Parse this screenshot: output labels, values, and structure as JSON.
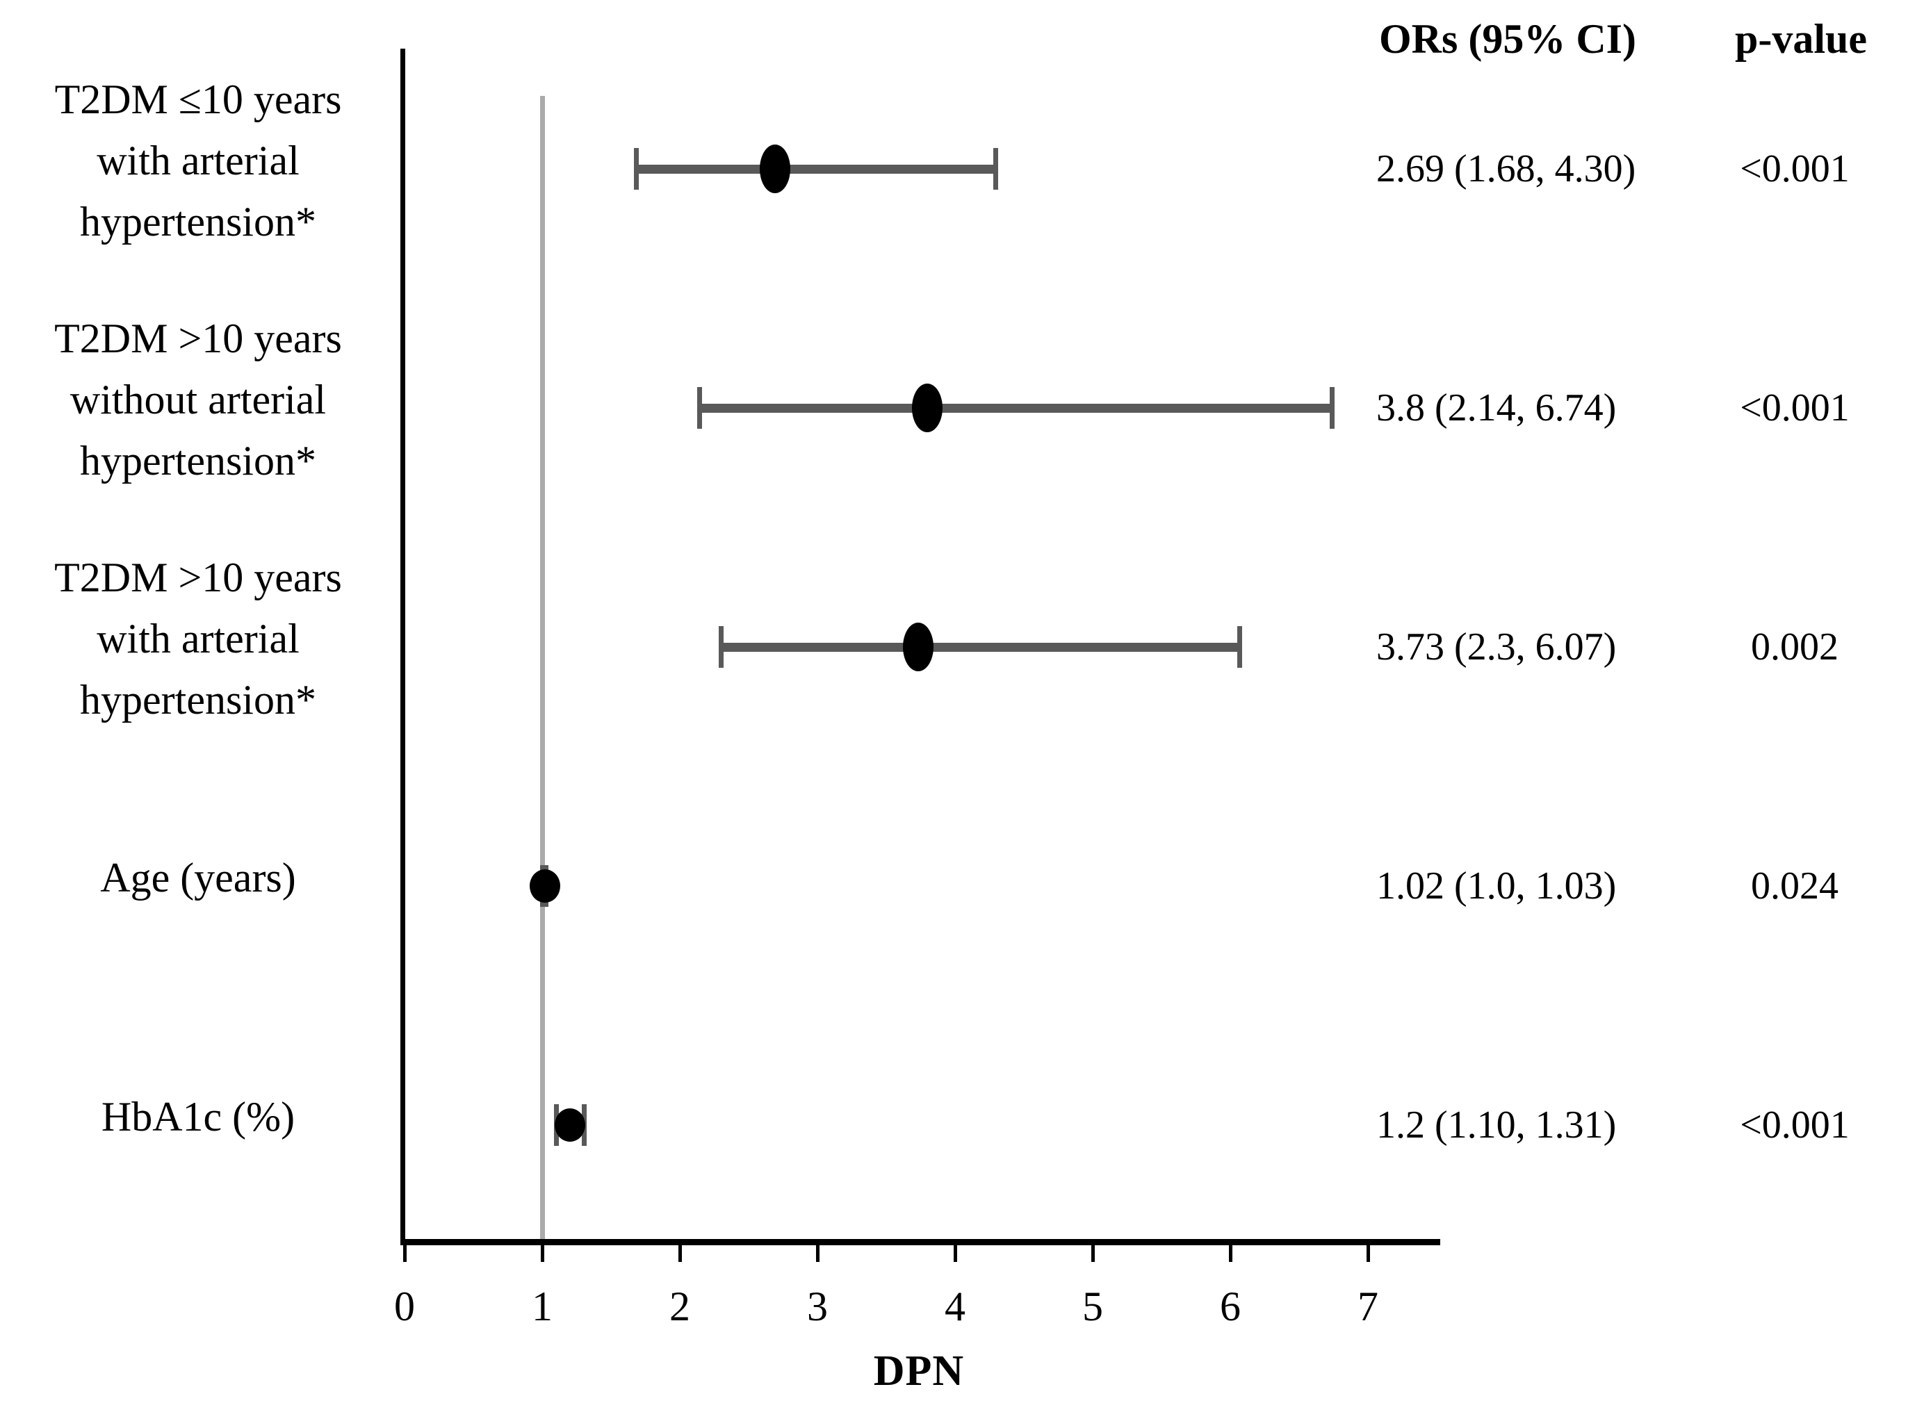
{
  "header": {
    "or_column_label": "ORs (95% CI)",
    "p_column_label": "p-value"
  },
  "chart_data": {
    "type": "forest",
    "xlabel": "DPN",
    "x_ticks": [
      0,
      1,
      2,
      3,
      4,
      5,
      6,
      7
    ],
    "xlim": [
      0,
      7.5
    ],
    "reference_line_x": 1,
    "grid": false,
    "rows": [
      {
        "label_lines": [
          "T2DM ≤10 years",
          "with arterial",
          "hypertension*"
        ],
        "or": 2.69,
        "ci_low": 1.68,
        "ci_high": 4.3,
        "or_text": "2.69 (1.68, 4.30)",
        "p_text": "<0.001"
      },
      {
        "label_lines": [
          "T2DM >10 years",
          "without arterial",
          "hypertension*"
        ],
        "or": 3.8,
        "ci_low": 2.14,
        "ci_high": 6.74,
        "or_text": "3.8 (2.14, 6.74)",
        "p_text": "<0.001"
      },
      {
        "label_lines": [
          "T2DM >10 years",
          "with arterial",
          "hypertension*"
        ],
        "or": 3.73,
        "ci_low": 2.3,
        "ci_high": 6.07,
        "or_text": "3.73 (2.3, 6.07)",
        "p_text": "0.002"
      },
      {
        "label_lines": [
          "Age (years)"
        ],
        "or": 1.02,
        "ci_low": 1.0,
        "ci_high": 1.03,
        "or_text": "1.02 (1.0, 1.03)",
        "p_text": "0.024"
      },
      {
        "label_lines": [
          "HbA1c (%)"
        ],
        "or": 1.2,
        "ci_low": 1.1,
        "ci_high": 1.31,
        "or_text": "1.2 (1.10, 1.31)",
        "p_text": "<0.001"
      }
    ],
    "colors": {
      "marker": "#000000",
      "error_bar": "#595959",
      "reference_line": "#ababab",
      "axis": "#000000",
      "text": "#000000"
    }
  }
}
